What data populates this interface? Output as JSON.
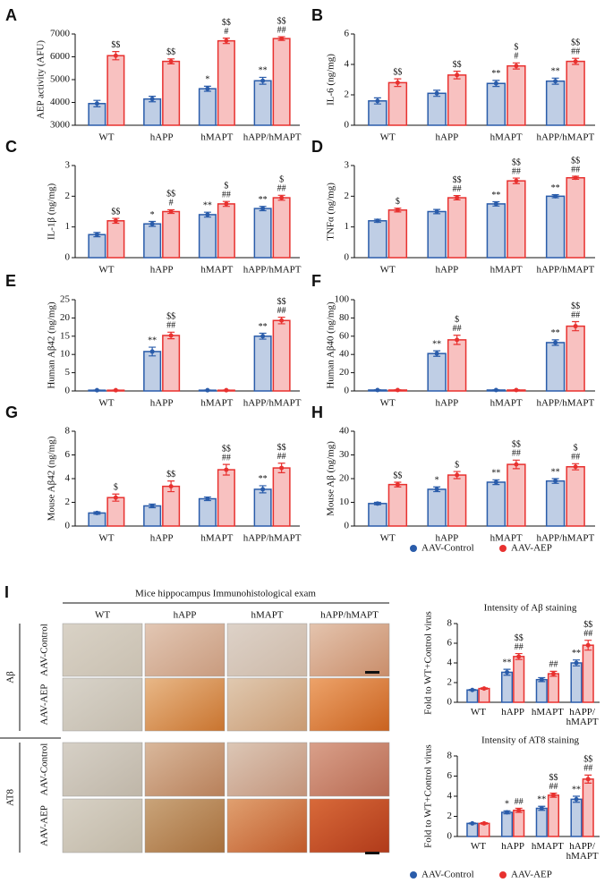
{
  "chart_data": [
    {
      "type": "bar",
      "panel": "A",
      "y_label": "AEP activity (AFU)",
      "categories": [
        "WT",
        "hAPP",
        "hMAPT",
        "hAPP/hMAPT"
      ],
      "series": [
        {
          "name": "AAV-Control",
          "color": "#2a5caa",
          "values": [
            3950,
            4150,
            4600,
            4950
          ],
          "errors": [
            140,
            120,
            110,
            150
          ],
          "annotations": [
            null,
            null,
            [
              "*"
            ],
            [
              "**"
            ]
          ]
        },
        {
          "name": "AAV-AEP",
          "color": "#e8312f",
          "values": [
            6050,
            5800,
            6700,
            6800
          ],
          "errors": [
            180,
            110,
            120,
            80
          ],
          "annotations": [
            [
              "$$"
            ],
            [
              "$$"
            ],
            [
              "$$",
              "#"
            ],
            [
              "$$",
              "##"
            ]
          ]
        }
      ],
      "ylim": [
        3000,
        7000
      ],
      "yticks": [
        3000,
        4000,
        5000,
        6000,
        7000
      ]
    },
    {
      "type": "bar",
      "panel": "B",
      "y_label": "IL-6 (ng/mg)",
      "categories": [
        "WT",
        "hAPP",
        "hMAPT",
        "hAPP/hMAPT"
      ],
      "series": [
        {
          "name": "AAV-Control",
          "color": "#2a5caa",
          "values": [
            1.6,
            2.1,
            2.75,
            2.9
          ],
          "errors": [
            0.2,
            0.2,
            0.2,
            0.2
          ],
          "annotations": [
            null,
            null,
            [
              "**"
            ],
            [
              "**"
            ]
          ]
        },
        {
          "name": "AAV-AEP",
          "color": "#e8312f",
          "values": [
            2.8,
            3.3,
            3.9,
            4.2
          ],
          "errors": [
            0.25,
            0.25,
            0.2,
            0.2
          ],
          "annotations": [
            [
              "$$"
            ],
            [
              "$$"
            ],
            [
              "$",
              "#"
            ],
            [
              "$$",
              "##"
            ]
          ]
        }
      ],
      "ylim": [
        0,
        6
      ],
      "yticks": [
        0,
        2,
        4,
        6
      ]
    },
    {
      "type": "bar",
      "panel": "C",
      "y_label": "IL-1β (ng/mg)",
      "categories": [
        "WT",
        "hAPP",
        "hMAPT",
        "hAPP/hMAPT"
      ],
      "series": [
        {
          "name": "AAV-Control",
          "color": "#2a5caa",
          "values": [
            0.75,
            1.1,
            1.4,
            1.6
          ],
          "errors": [
            0.07,
            0.08,
            0.08,
            0.07
          ],
          "annotations": [
            null,
            [
              "*"
            ],
            [
              "**"
            ],
            [
              "**"
            ]
          ]
        },
        {
          "name": "AAV-AEP",
          "color": "#e8312f",
          "values": [
            1.2,
            1.5,
            1.75,
            1.95
          ],
          "errors": [
            0.08,
            0.06,
            0.08,
            0.08
          ],
          "annotations": [
            [
              "$$"
            ],
            [
              "$$",
              "#"
            ],
            [
              "$",
              "##"
            ],
            [
              "$",
              "##"
            ]
          ]
        }
      ],
      "ylim": [
        0,
        3
      ],
      "yticks": [
        0,
        1,
        2,
        3
      ]
    },
    {
      "type": "bar",
      "panel": "D",
      "y_label": "TNFα (ng/mg)",
      "categories": [
        "WT",
        "hAPP",
        "hMAPT",
        "hAPP/hMAPT"
      ],
      "series": [
        {
          "name": "AAV-Control",
          "color": "#2a5caa",
          "values": [
            1.2,
            1.5,
            1.75,
            2.0
          ],
          "errors": [
            0.05,
            0.07,
            0.07,
            0.05
          ],
          "annotations": [
            null,
            null,
            [
              "**"
            ],
            [
              "**"
            ]
          ]
        },
        {
          "name": "AAV-AEP",
          "color": "#e8312f",
          "values": [
            1.55,
            1.95,
            2.5,
            2.6
          ],
          "errors": [
            0.06,
            0.07,
            0.09,
            0.05
          ],
          "annotations": [
            [
              "$"
            ],
            [
              "$$",
              "##"
            ],
            [
              "$$",
              "##"
            ],
            [
              "$$",
              "##"
            ]
          ]
        }
      ],
      "ylim": [
        0,
        3
      ],
      "yticks": [
        0,
        1,
        2,
        3
      ]
    },
    {
      "type": "bar",
      "panel": "E",
      "y_label": "Human Aβ42 (ng/mg)",
      "categories": [
        "WT",
        "hAPP",
        "hMAPT",
        "hAPP/hMAPT"
      ],
      "series": [
        {
          "name": "AAV-Control",
          "color": "#2a5caa",
          "values": [
            0.2,
            10.8,
            0.2,
            15
          ],
          "errors": [
            0.05,
            1.2,
            0.05,
            0.8
          ],
          "annotations": [
            null,
            [
              "**"
            ],
            null,
            [
              "**"
            ]
          ]
        },
        {
          "name": "AAV-AEP",
          "color": "#e8312f",
          "values": [
            0.2,
            15.2,
            0.2,
            19.3
          ],
          "errors": [
            0.05,
            0.9,
            0.05,
            0.9
          ],
          "annotations": [
            null,
            [
              "$$",
              "##"
            ],
            null,
            [
              "$$",
              "##"
            ]
          ]
        }
      ],
      "ylim": [
        0,
        25
      ],
      "yticks": [
        0,
        5,
        10,
        15,
        20,
        25
      ]
    },
    {
      "type": "bar",
      "panel": "F",
      "y_label": "Human Aβ40 (ng/mg)",
      "categories": [
        "WT",
        "hAPP",
        "hMAPT",
        "hAPP/hMAPT"
      ],
      "series": [
        {
          "name": "AAV-Control",
          "color": "#2a5caa",
          "values": [
            1,
            41,
            1,
            53
          ],
          "errors": [
            0.2,
            3,
            0.2,
            3
          ],
          "annotations": [
            null,
            [
              "**"
            ],
            null,
            [
              "**"
            ]
          ]
        },
        {
          "name": "AAV-AEP",
          "color": "#e8312f",
          "values": [
            1,
            56,
            1,
            71
          ],
          "errors": [
            0.2,
            5,
            0.2,
            5
          ],
          "annotations": [
            null,
            [
              "$",
              "##"
            ],
            null,
            [
              "$$",
              "##"
            ]
          ]
        }
      ],
      "ylim": [
        0,
        100
      ],
      "yticks": [
        0,
        20,
        40,
        60,
        80,
        100
      ]
    },
    {
      "type": "bar",
      "panel": "G",
      "y_label": "Mouse Aβ42 (ng/mg)",
      "categories": [
        "WT",
        "hAPP",
        "hMAPT",
        "hAPP/hMAPT"
      ],
      "series": [
        {
          "name": "AAV-Control",
          "color": "#2a5caa",
          "values": [
            1.1,
            1.7,
            2.3,
            3.1
          ],
          "errors": [
            0.1,
            0.15,
            0.15,
            0.3
          ],
          "annotations": [
            null,
            null,
            null,
            [
              "**"
            ]
          ]
        },
        {
          "name": "AAV-AEP",
          "color": "#e8312f",
          "values": [
            2.4,
            3.35,
            4.75,
            4.9
          ],
          "errors": [
            0.3,
            0.45,
            0.45,
            0.4
          ],
          "annotations": [
            [
              "$"
            ],
            [
              "$$"
            ],
            [
              "$$",
              "##"
            ],
            [
              "$$",
              "##"
            ]
          ]
        }
      ],
      "ylim": [
        0,
        8
      ],
      "yticks": [
        0,
        2,
        4,
        6,
        8
      ]
    },
    {
      "type": "bar",
      "panel": "H",
      "y_label": "Mouse Aβ (ng/mg)",
      "categories": [
        "WT",
        "hAPP",
        "hMAPT",
        "hAPP/hMAPT"
      ],
      "series": [
        {
          "name": "AAV-Control",
          "color": "#2a5caa",
          "values": [
            9.5,
            15.5,
            18.5,
            19
          ],
          "errors": [
            0.5,
            1,
            1,
            1
          ],
          "annotations": [
            null,
            [
              "*"
            ],
            [
              "**"
            ],
            [
              "**"
            ]
          ]
        },
        {
          "name": "AAV-AEP",
          "color": "#e8312f",
          "values": [
            17.5,
            21.5,
            26,
            25
          ],
          "errors": [
            1,
            1.5,
            1.8,
            1.3
          ],
          "annotations": [
            [
              "$$"
            ],
            [
              "$"
            ],
            [
              "$$",
              "##"
            ],
            [
              "$",
              "##"
            ]
          ]
        }
      ],
      "ylim": [
        0,
        40
      ],
      "yticks": [
        0,
        10,
        20,
        30,
        40
      ]
    },
    {
      "type": "bar",
      "title": "Intensity of Aβ staining",
      "y_label": "Fold to WT+Control virus",
      "categories": [
        "WT",
        "hAPP",
        "hMAPT",
        "hAPP/ hMAPT"
      ],
      "series": [
        {
          "name": "AAV-Control",
          "color": "#2a5caa",
          "values": [
            1.25,
            3.05,
            2.3,
            4.0
          ],
          "errors": [
            0.05,
            0.3,
            0.2,
            0.3
          ],
          "annotations": [
            null,
            [
              "**"
            ],
            null,
            [
              "**"
            ]
          ]
        },
        {
          "name": "AAV-AEP",
          "color": "#e8312f",
          "values": [
            1.4,
            4.65,
            2.9,
            5.8
          ],
          "errors": [
            0.07,
            0.3,
            0.25,
            0.5
          ],
          "annotations": [
            null,
            [
              "$$",
              "##"
            ],
            [
              "##"
            ],
            [
              "$$",
              "##"
            ]
          ]
        }
      ],
      "ylim": [
        0,
        8
      ],
      "yticks": [
        0,
        2,
        4,
        6,
        8
      ]
    },
    {
      "type": "bar",
      "title": "Intensity of AT8  staining",
      "y_label": "Fold to WT+Control virus",
      "categories": [
        "WT",
        "hAPP",
        "hMAPT",
        "hAPP/ hMAPT"
      ],
      "series": [
        {
          "name": "AAV-Control",
          "color": "#2a5caa",
          "values": [
            1.3,
            2.4,
            2.8,
            3.7
          ],
          "errors": [
            0.05,
            0.15,
            0.2,
            0.3
          ],
          "annotations": [
            null,
            [
              "*"
            ],
            [
              "**"
            ],
            [
              "**"
            ]
          ]
        },
        {
          "name": "AAV-AEP",
          "color": "#e8312f",
          "values": [
            1.3,
            2.6,
            4.1,
            5.7
          ],
          "errors": [
            0.07,
            0.2,
            0.2,
            0.4
          ],
          "annotations": [
            null,
            [
              "##"
            ],
            [
              "$$",
              "##"
            ],
            [
              "$$",
              "##"
            ]
          ]
        }
      ],
      "ylim": [
        0,
        8
      ],
      "yticks": [
        0,
        2,
        4,
        6,
        8
      ]
    }
  ],
  "image_panel": {
    "panel": "I",
    "title": "Mice hippocampus Immunohistological exam",
    "columns": [
      "WT",
      "hAPP",
      "hMAPT",
      "hAPP/hMAPT"
    ],
    "groups": [
      {
        "label": "Aβ",
        "rows": [
          "AAV-Control",
          "AAV-AEP"
        ]
      },
      {
        "label": "AT8",
        "rows": [
          "AAV-Control",
          "AAV-AEP"
        ]
      }
    ]
  }
}
